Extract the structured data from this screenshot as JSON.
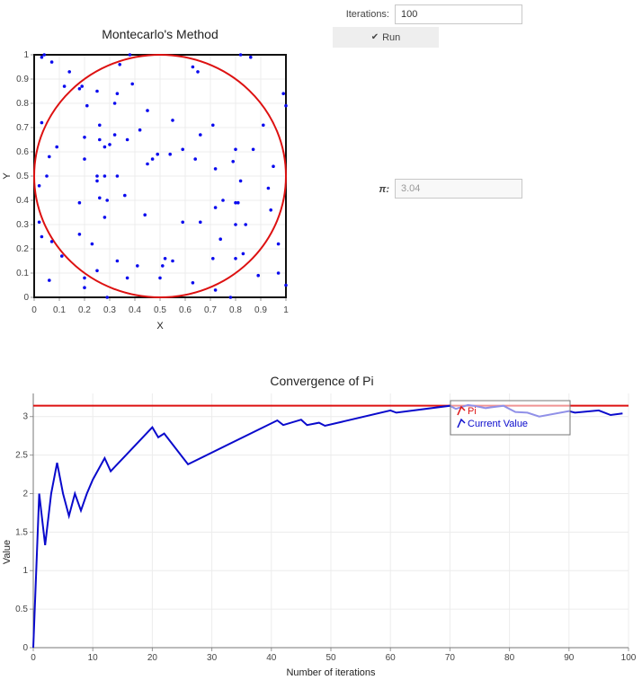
{
  "controls": {
    "iterations_label": "Iterations:",
    "iterations_value": "100",
    "run_label": "Run",
    "pi_label": "π:",
    "pi_value": "3.04"
  },
  "colors": {
    "circle": "#dd1111",
    "points": "#0a0aee",
    "pi_line": "#dd1111",
    "current_line": "#0a0acc"
  },
  "icons": {
    "run": "check-icon"
  },
  "chart_data": [
    {
      "type": "scatter",
      "title": "Montecarlo's Method",
      "xlabel": "X",
      "ylabel": "Y",
      "xlim": [
        0,
        1
      ],
      "ylim": [
        0,
        1
      ],
      "xticks": [
        "0",
        "0.1",
        "0.2",
        "0.3",
        "0.4",
        "0.5",
        "0.6",
        "0.7",
        "0.8",
        "0.9",
        "1"
      ],
      "yticks": [
        "0",
        "0.1",
        "0.2",
        "0.3",
        "0.4",
        "0.5",
        "0.6",
        "0.7",
        "0.8",
        "0.9",
        "1"
      ],
      "circle": {
        "center": [
          0.5,
          0.5
        ],
        "radius": 0.5
      },
      "points": [
        [
          0.03,
          0.99
        ],
        [
          0.04,
          1.0
        ],
        [
          0.07,
          0.97
        ],
        [
          0.14,
          0.93
        ],
        [
          0.18,
          0.86
        ],
        [
          0.19,
          0.87
        ],
        [
          0.25,
          0.85
        ],
        [
          0.32,
          0.8
        ],
        [
          0.33,
          0.84
        ],
        [
          0.34,
          0.96
        ],
        [
          0.39,
          0.88
        ],
        [
          0.38,
          1.0
        ],
        [
          0.63,
          0.95
        ],
        [
          0.65,
          0.93
        ],
        [
          0.82,
          1.0
        ],
        [
          0.86,
          0.99
        ],
        [
          0.99,
          0.84
        ],
        [
          1.0,
          0.79
        ],
        [
          0.03,
          0.72
        ],
        [
          0.12,
          0.87
        ],
        [
          0.21,
          0.79
        ],
        [
          0.26,
          0.71
        ],
        [
          0.26,
          0.65
        ],
        [
          0.28,
          0.62
        ],
        [
          0.32,
          0.67
        ],
        [
          0.37,
          0.65
        ],
        [
          0.42,
          0.69
        ],
        [
          0.45,
          0.77
        ],
        [
          0.55,
          0.73
        ],
        [
          0.71,
          0.71
        ],
        [
          0.66,
          0.67
        ],
        [
          0.59,
          0.61
        ],
        [
          0.91,
          0.71
        ],
        [
          0.87,
          0.61
        ],
        [
          0.8,
          0.61
        ],
        [
          0.79,
          0.56
        ],
        [
          0.72,
          0.53
        ],
        [
          0.64,
          0.57
        ],
        [
          0.54,
          0.59
        ],
        [
          0.49,
          0.59
        ],
        [
          0.47,
          0.57
        ],
        [
          0.45,
          0.55
        ],
        [
          0.33,
          0.5
        ],
        [
          0.3,
          0.63
        ],
        [
          0.2,
          0.66
        ],
        [
          0.2,
          0.57
        ],
        [
          0.25,
          0.5
        ],
        [
          0.28,
          0.5
        ],
        [
          0.25,
          0.48
        ],
        [
          0.02,
          0.46
        ],
        [
          0.05,
          0.5
        ],
        [
          0.09,
          0.62
        ],
        [
          0.06,
          0.58
        ],
        [
          0.95,
          0.54
        ],
        [
          0.93,
          0.45
        ],
        [
          0.94,
          0.36
        ],
        [
          0.82,
          0.48
        ],
        [
          0.81,
          0.39
        ],
        [
          0.8,
          0.39
        ],
        [
          0.75,
          0.4
        ],
        [
          0.72,
          0.37
        ],
        [
          0.36,
          0.42
        ],
        [
          0.29,
          0.4
        ],
        [
          0.26,
          0.41
        ],
        [
          0.18,
          0.39
        ],
        [
          0.02,
          0.31
        ],
        [
          0.03,
          0.25
        ],
        [
          0.07,
          0.23
        ],
        [
          0.11,
          0.17
        ],
        [
          0.18,
          0.26
        ],
        [
          0.23,
          0.22
        ],
        [
          0.28,
          0.33
        ],
        [
          0.44,
          0.34
        ],
        [
          0.59,
          0.31
        ],
        [
          0.66,
          0.31
        ],
        [
          0.74,
          0.24
        ],
        [
          0.8,
          0.3
        ],
        [
          0.84,
          0.3
        ],
        [
          0.97,
          0.22
        ],
        [
          0.83,
          0.18
        ],
        [
          0.8,
          0.16
        ],
        [
          0.71,
          0.16
        ],
        [
          0.55,
          0.15
        ],
        [
          0.52,
          0.16
        ],
        [
          0.51,
          0.13
        ],
        [
          0.41,
          0.13
        ],
        [
          0.33,
          0.15
        ],
        [
          0.25,
          0.11
        ],
        [
          0.2,
          0.08
        ],
        [
          0.2,
          0.04
        ],
        [
          0.06,
          0.07
        ],
        [
          0.37,
          0.08
        ],
        [
          0.5,
          0.08
        ],
        [
          0.63,
          0.06
        ],
        [
          0.72,
          0.03
        ],
        [
          0.89,
          0.09
        ],
        [
          0.97,
          0.1
        ],
        [
          1.0,
          0.05
        ],
        [
          0.29,
          0.0
        ],
        [
          0.78,
          0.0
        ]
      ]
    },
    {
      "type": "line",
      "title": "Convergence of Pi",
      "xlabel": "Number of iterations",
      "ylabel": "Value",
      "xlim": [
        0,
        100
      ],
      "ylim": [
        0,
        3.3
      ],
      "xticks": [
        "0",
        "10",
        "20",
        "30",
        "40",
        "50",
        "60",
        "70",
        "80",
        "90",
        "100"
      ],
      "yticks": [
        "0",
        "0.5",
        "1",
        "1.5",
        "2",
        "2.5",
        "3"
      ],
      "legend_position": "top-right",
      "series": [
        {
          "name": "Pi",
          "x": [
            0,
            100
          ],
          "values": [
            3.14159,
            3.14159
          ]
        },
        {
          "name": "Current Value",
          "x": [
            0,
            1,
            2,
            3,
            4,
            5,
            6,
            7,
            8,
            9,
            10,
            12,
            13,
            20,
            21,
            22,
            26,
            41,
            42,
            45,
            46,
            48,
            49,
            60,
            61,
            70,
            71,
            73,
            74,
            76,
            77,
            79,
            80,
            81,
            83,
            85,
            90,
            91,
            95,
            97,
            99
          ],
          "values": [
            0,
            2.0,
            1.33,
            2.0,
            2.4,
            2.0,
            1.71,
            2.0,
            1.78,
            2.0,
            2.18,
            2.46,
            2.29,
            2.86,
            2.73,
            2.78,
            2.38,
            2.95,
            2.89,
            2.96,
            2.89,
            2.92,
            2.88,
            3.08,
            3.05,
            3.14,
            3.1,
            3.15,
            3.14,
            3.11,
            3.12,
            3.14,
            3.1,
            3.06,
            3.05,
            3.0,
            3.07,
            3.05,
            3.08,
            3.02,
            3.04
          ]
        }
      ]
    }
  ]
}
